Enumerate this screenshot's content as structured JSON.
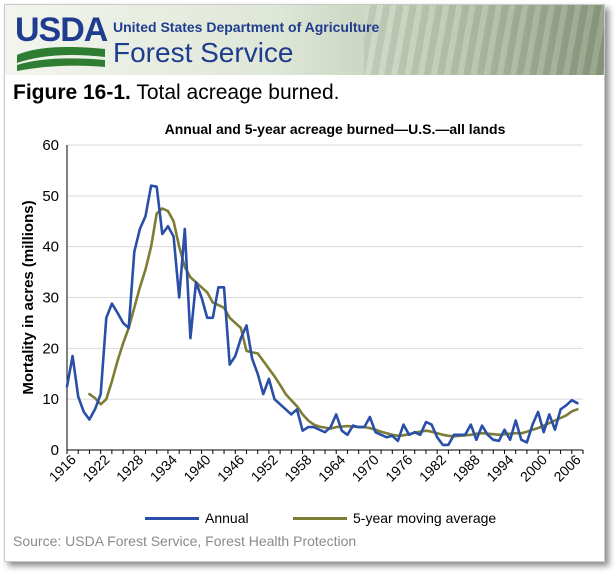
{
  "header": {
    "logo_text": "USDA",
    "department": "United States Department of Agriculture",
    "agency": "Forest Service"
  },
  "figure": {
    "label": "Figure 16-1.",
    "caption": "Total acreage burned."
  },
  "source": "Source: USDA Forest Service, Forest Health Protection",
  "colors": {
    "annual": "#2a4fa8",
    "moving_average": "#7d7d35",
    "usda_blue": "#1f3d8f",
    "usda_green": "#2f7d32"
  },
  "chart_data": {
    "type": "line",
    "title": "Annual and 5-year acreage burned—U.S.—all lands",
    "xlabel": "",
    "ylabel": "Mortality in acres (millions)",
    "xlim": [
      1916,
      2008
    ],
    "ylim": [
      0,
      60
    ],
    "yticks": [
      0,
      10,
      20,
      30,
      40,
      50,
      60
    ],
    "xticks": [
      1916,
      1922,
      1928,
      1934,
      1940,
      1946,
      1952,
      1958,
      1964,
      1970,
      1976,
      1982,
      1988,
      1994,
      2000,
      2006
    ],
    "grid": "horizontal",
    "legend": "bottom",
    "series": [
      {
        "name": "Annual",
        "x": [
          1916,
          1917,
          1918,
          1919,
          1920,
          1921,
          1922,
          1923,
          1924,
          1925,
          1926,
          1927,
          1928,
          1929,
          1930,
          1931,
          1932,
          1933,
          1934,
          1935,
          1936,
          1937,
          1938,
          1939,
          1940,
          1941,
          1942,
          1943,
          1944,
          1945,
          1946,
          1947,
          1948,
          1949,
          1950,
          1951,
          1952,
          1953,
          1954,
          1955,
          1956,
          1957,
          1958,
          1959,
          1960,
          1961,
          1962,
          1963,
          1964,
          1965,
          1966,
          1967,
          1968,
          1969,
          1970,
          1971,
          1972,
          1973,
          1974,
          1975,
          1976,
          1977,
          1978,
          1979,
          1980,
          1981,
          1982,
          1983,
          1984,
          1985,
          1986,
          1987,
          1988,
          1989,
          1990,
          1991,
          1992,
          1993,
          1994,
          1995,
          1996,
          1997,
          1998,
          1999,
          2000,
          2001,
          2002,
          2003,
          2004,
          2005,
          2006,
          2007
        ],
        "values": [
          12.5,
          18.5,
          10.5,
          7.5,
          6.0,
          8.0,
          11.0,
          26.0,
          28.8,
          27.0,
          25.0,
          24.0,
          39.0,
          43.5,
          46.0,
          52.0,
          51.8,
          42.5,
          44.0,
          42.0,
          30.0,
          43.5,
          22.0,
          33.0,
          30.0,
          26.0,
          26.0,
          32.0,
          32.0,
          16.8,
          18.5,
          22.0,
          24.5,
          18.0,
          15.0,
          11.0,
          14.0,
          10.0,
          9.0,
          8.0,
          7.0,
          8.0,
          3.8,
          4.5,
          4.5,
          4.0,
          3.5,
          4.5,
          7.0,
          3.8,
          3.0,
          4.8,
          4.5,
          4.5,
          6.5,
          3.5,
          3.0,
          2.5,
          2.8,
          1.8,
          5.0,
          3.0,
          3.5,
          3.0,
          5.5,
          5.0,
          2.5,
          1.0,
          1.0,
          3.0,
          3.0,
          3.0,
          5.0,
          2.0,
          4.8,
          3.0,
          2.0,
          1.8,
          4.0,
          2.0,
          5.8,
          2.0,
          1.5,
          5.0,
          7.5,
          3.5,
          7.0,
          4.0,
          8.0,
          8.8,
          9.8,
          9.2
        ]
      },
      {
        "name": "5-year moving average",
        "x": [
          1920,
          1921,
          1922,
          1923,
          1924,
          1925,
          1926,
          1927,
          1928,
          1929,
          1930,
          1931,
          1932,
          1933,
          1934,
          1935,
          1936,
          1937,
          1938,
          1939,
          1940,
          1941,
          1942,
          1943,
          1944,
          1945,
          1946,
          1947,
          1948,
          1949,
          1950,
          1951,
          1952,
          1953,
          1954,
          1955,
          1956,
          1957,
          1958,
          1959,
          1960,
          1961,
          1962,
          1963,
          1964,
          1965,
          1966,
          1967,
          1968,
          1969,
          1970,
          1971,
          1972,
          1973,
          1974,
          1975,
          1976,
          1977,
          1978,
          1979,
          1980,
          1981,
          1982,
          1983,
          1984,
          1985,
          1986,
          1987,
          1988,
          1989,
          1990,
          1991,
          1992,
          1993,
          1994,
          1995,
          1996,
          1997,
          1998,
          1999,
          2000,
          2001,
          2002,
          2003,
          2004,
          2005,
          2006,
          2007
        ],
        "values": [
          11.0,
          10.2,
          9.0,
          10.0,
          13.5,
          17.5,
          21.0,
          24.0,
          28.0,
          32.0,
          35.5,
          40.0,
          46.5,
          47.5,
          47.0,
          45.0,
          40.0,
          36.0,
          34.0,
          33.0,
          32.0,
          31.0,
          29.0,
          28.5,
          28.0,
          26.0,
          25.0,
          24.0,
          19.5,
          19.2,
          19.0,
          17.5,
          16.0,
          14.5,
          12.8,
          11.0,
          9.8,
          8.6,
          7.0,
          5.8,
          5.0,
          4.6,
          4.4,
          4.2,
          4.5,
          4.6,
          4.7,
          4.6,
          4.5,
          4.5,
          4.3,
          4.0,
          3.6,
          3.3,
          3.0,
          2.8,
          2.9,
          3.1,
          3.4,
          3.6,
          3.8,
          3.6,
          3.3,
          3.0,
          2.8,
          2.7,
          2.8,
          2.9,
          3.0,
          3.2,
          3.3,
          3.2,
          3.1,
          3.0,
          3.1,
          3.2,
          3.3,
          3.3,
          3.6,
          4.0,
          4.3,
          4.8,
          5.3,
          5.8,
          6.3,
          6.8,
          7.6,
          8.0
        ]
      }
    ]
  }
}
